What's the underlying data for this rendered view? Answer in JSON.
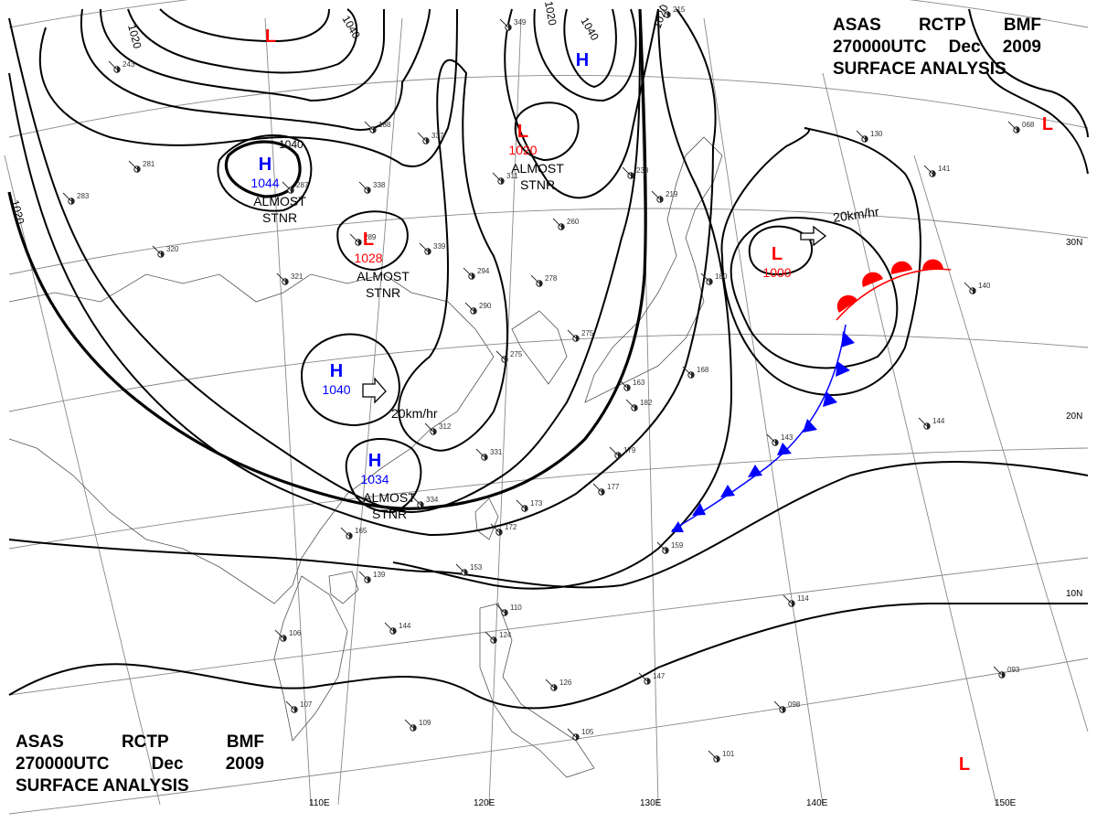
{
  "title_top": {
    "line1": [
      "ASAS",
      "RCTP",
      "BMF"
    ],
    "line2": [
      "270000UTC",
      "Dec",
      "2009"
    ],
    "line3": "SURFACE ANALYSIS"
  },
  "title_bottom": {
    "line1": [
      "ASAS",
      "RCTP",
      "BMF"
    ],
    "line2": [
      "270000UTC",
      "Dec",
      "2009"
    ],
    "line3": "SURFACE ANALYSIS"
  },
  "lon_labels": [
    "110E",
    "120E",
    "130E",
    "140E",
    "150E"
  ],
  "lat_labels": [
    "30N",
    "20N",
    "10N"
  ],
  "isobar_labels": [
    "1020",
    "1020",
    "1040",
    "1020",
    "1040",
    "1040",
    "1020"
  ],
  "pressure_systems": [
    {
      "type": "L",
      "color": "#ff0000",
      "value": "",
      "note": ""
    },
    {
      "type": "H",
      "color": "#0000ff",
      "value": "",
      "note": ""
    },
    {
      "type": "H",
      "color": "#0000ff",
      "value": "1044",
      "note": "ALMOST STNR"
    },
    {
      "type": "L",
      "color": "#ff0000",
      "value": "1020",
      "note": "ALMOST STNR"
    },
    {
      "type": "L",
      "color": "#ff0000",
      "value": "1028",
      "note": "ALMOST STNR"
    },
    {
      "type": "H",
      "color": "#0000ff",
      "value": "1040",
      "note": ""
    },
    {
      "type": "H",
      "color": "#0000ff",
      "value": "1034",
      "note": "ALMOST STNR"
    },
    {
      "type": "L",
      "color": "#ff0000",
      "value": "1000",
      "note": ""
    },
    {
      "type": "L",
      "color": "#ff0000",
      "value": "",
      "note": ""
    },
    {
      "type": "L",
      "color": "#ff0000",
      "value": "",
      "note": ""
    }
  ],
  "movements": [
    "20km/hr",
    "20km/hr"
  ],
  "station_reports": [
    "243",
    "287",
    "188",
    "337",
    "338",
    "311",
    "260",
    "238",
    "281",
    "283",
    "320",
    "321",
    "289",
    "339",
    "294",
    "278",
    "290",
    "275",
    "275",
    "312",
    "331",
    "334",
    "173",
    "172",
    "165",
    "139",
    "106",
    "144",
    "107",
    "109",
    "124",
    "110",
    "105",
    "126",
    "147",
    "098",
    "101",
    "093",
    "114",
    "159",
    "179",
    "177",
    "143",
    "144",
    "140",
    "141",
    "130",
    "068",
    "180",
    "168",
    "163",
    "182",
    "349",
    "215",
    "219",
    "153"
  ],
  "colors": {
    "low": "#ff0000",
    "high": "#0000ff",
    "warm_front": "#ff0000",
    "cold_front": "#0000ff",
    "isobar": "#000000",
    "grid": "#888888",
    "coast": "#555555"
  }
}
